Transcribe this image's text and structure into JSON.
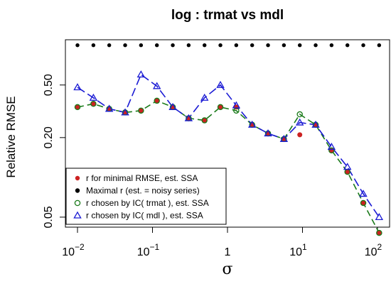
{
  "chart_data": {
    "type": "scatter",
    "title": "log :  trmat vs mdl",
    "xlabel": "σ",
    "ylabel": "Relative RMSE",
    "xscale": "log",
    "yscale": "log",
    "xlim": [
      0.0069,
      145
    ],
    "ylim": [
      0.042,
      1.1
    ],
    "xticks": [
      {
        "value": 0.01,
        "base": "10",
        "exp": "−2"
      },
      {
        "value": 0.1,
        "base": "10",
        "exp": "−1"
      },
      {
        "value": 1,
        "base": "1",
        "exp": ""
      },
      {
        "value": 10,
        "base": "10",
        "exp": "1"
      },
      {
        "value": 100,
        "base": "10",
        "exp": "2"
      }
    ],
    "yticks": [
      {
        "value": 0.05,
        "label": "0.05"
      },
      {
        "value": 0.2,
        "label": "0.20"
      },
      {
        "value": 0.5,
        "label": "0.50"
      }
    ],
    "x": [
      0.01,
      0.0163,
      0.0265,
      0.0432,
      0.0703,
      0.1145,
      0.1865,
      0.3036,
      0.4943,
      0.8047,
      1.31,
      2.133,
      3.474,
      5.655,
      9.207,
      14.99,
      24.41,
      39.74,
      64.7,
      105.3
    ],
    "series": [
      {
        "name": "r for minimal RMSE, est. SSA",
        "color": "#cc2222",
        "marker": "dot",
        "values": [
          0.34,
          0.36,
          0.33,
          0.31,
          0.32,
          0.38,
          0.34,
          0.28,
          0.27,
          0.34,
          0.34,
          0.25,
          0.215,
          0.195,
          0.21,
          0.25,
          0.16,
          0.11,
          0.064,
          0.038
        ]
      },
      {
        "name": "Maximal r (est. = noisy series)",
        "color": "#000000",
        "marker": "dot",
        "values": [
          1,
          1,
          1,
          1,
          1,
          1,
          1,
          1,
          1,
          1,
          1,
          1,
          1,
          1,
          1,
          1,
          1,
          1,
          1,
          1
        ]
      },
      {
        "name": "r chosen by IC( trmat ), est. SSA",
        "color": "#1a7a1a",
        "marker": "circle",
        "line": "dash",
        "values": [
          0.34,
          0.36,
          0.33,
          0.31,
          0.32,
          0.38,
          0.34,
          0.28,
          0.27,
          0.34,
          0.32,
          0.25,
          0.215,
          0.195,
          0.3,
          0.25,
          0.16,
          0.11,
          0.064,
          0.038
        ]
      },
      {
        "name": "r chosen by IC( mdl ), est. SSA",
        "color": "#1a1ad4",
        "marker": "triangle",
        "line": "longdash",
        "values": [
          0.48,
          0.4,
          0.33,
          0.31,
          0.6,
          0.49,
          0.34,
          0.28,
          0.4,
          0.5,
          0.35,
          0.25,
          0.215,
          0.195,
          0.26,
          0.25,
          0.17,
          0.12,
          0.075,
          0.05
        ]
      }
    ],
    "legend": {
      "position": "bottom-left",
      "box": true
    }
  }
}
